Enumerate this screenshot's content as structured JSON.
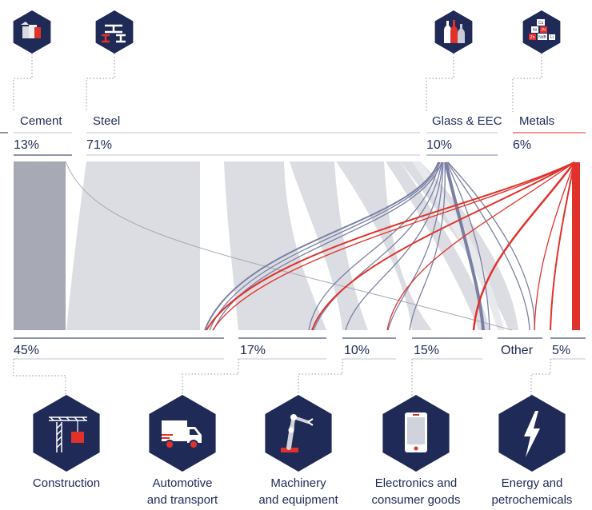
{
  "sources": [
    {
      "id": "cement",
      "label": "Cement",
      "share": "13%",
      "icon": "cement-bags-icon"
    },
    {
      "id": "steel",
      "label": "Steel",
      "share": "71%",
      "icon": "steel-beams-icon"
    },
    {
      "id": "glass",
      "label": "Glass & EEC",
      "share": "10%",
      "icon": "glass-bottles-icon"
    },
    {
      "id": "metals",
      "label": "Metals",
      "share": "6%",
      "icon": "metal-elements-icon"
    }
  ],
  "metal_icon_labels": [
    "Cu",
    "Ni",
    "Pt",
    "Zn",
    "NdB",
    "Li"
  ],
  "destinations": [
    {
      "id": "construction",
      "share": "45%",
      "caption_lines": [
        "Construction"
      ],
      "icon": "crane-icon"
    },
    {
      "id": "automotive",
      "share": "17%",
      "caption_lines": [
        "Automotive",
        "and transport"
      ],
      "icon": "truck-icon"
    },
    {
      "id": "machinery",
      "share": "10%",
      "caption_lines": [
        "Machinery",
        "and equipment"
      ],
      "icon": "robot-arm-icon"
    },
    {
      "id": "electronics",
      "share": "15%",
      "caption_lines": [
        "Electronics and",
        "consumer goods"
      ],
      "icon": "smartphone-icon"
    },
    {
      "id": "other",
      "share": "Other",
      "caption_lines": [],
      "icon": ""
    },
    {
      "id": "energy",
      "share": "5%",
      "caption_lines": [
        "Energy and",
        "petrochemicals"
      ],
      "icon": "lightning-bolt-icon"
    }
  ],
  "colors": {
    "navy": "#1f2a56",
    "cement": "#a7a9b4",
    "steel": "#dcdde2",
    "glass": "#7a80a4",
    "metals": "#e0322b",
    "rule": "#c3c6d1"
  }
}
